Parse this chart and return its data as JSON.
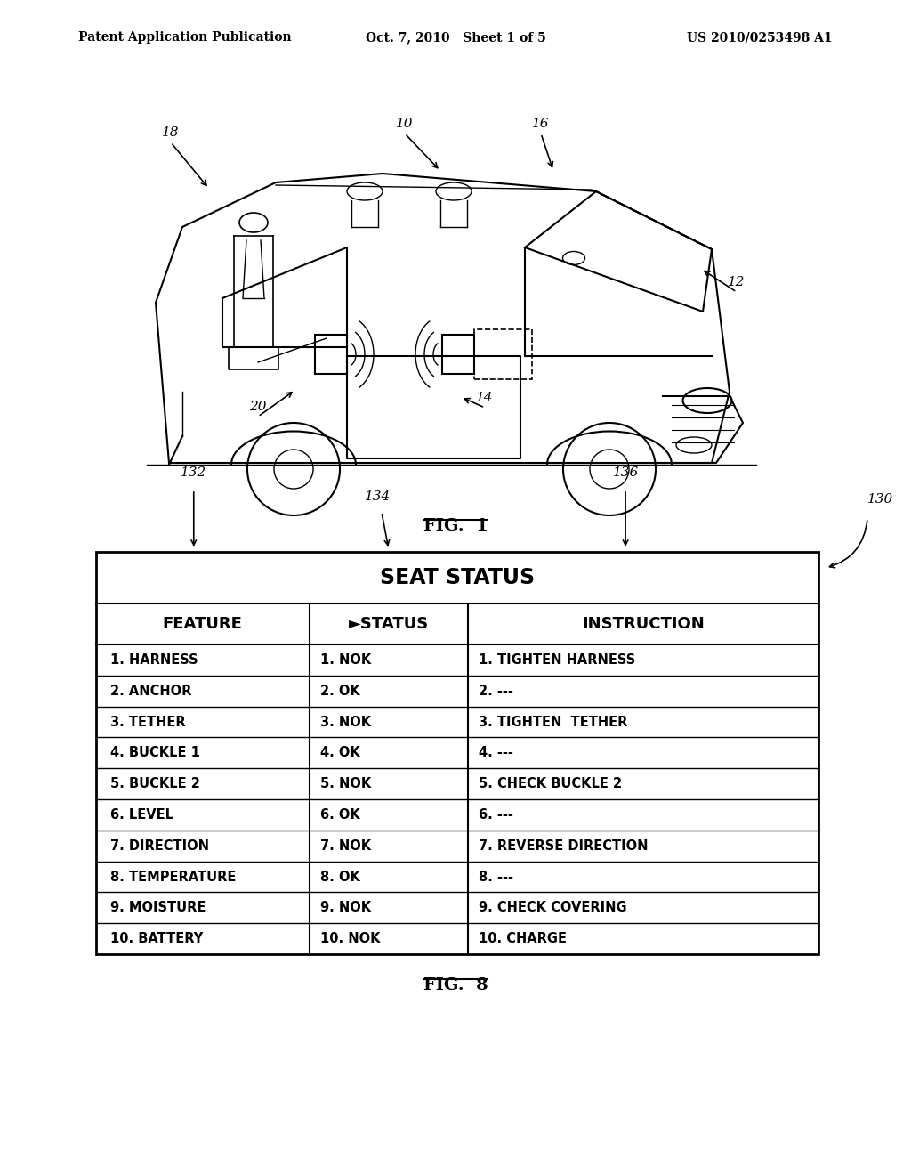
{
  "bg_color": "#ffffff",
  "header_left": "Patent Application Publication",
  "header_center": "Oct. 7, 2010   Sheet 1 of 5",
  "header_right": "US 2010/0253498 A1",
  "fig1_label": "FIG.  1",
  "fig8_label": "FIG.  8",
  "table_title": "SEAT STATUS",
  "col_headers": [
    "FEATURE",
    "►STATUS",
    "INSTRUCTION"
  ],
  "col_ref_labels": [
    "132",
    "134",
    "136"
  ],
  "table_ref_label": "130",
  "features": [
    "1. HARNESS",
    "2. ANCHOR",
    "3. TETHER",
    "4. BUCKLE 1",
    "5. BUCKLE 2",
    "6. LEVEL",
    "7. DIRECTION",
    "8. TEMPERATURE",
    "9. MOISTURE",
    "10. BATTERY"
  ],
  "statuses": [
    "1. NOK",
    "2. OK",
    "3. NOK",
    "4. OK",
    "5. NOK",
    "6. OK",
    "7. NOK",
    "8. OK",
    "9. NOK",
    "10. NOK"
  ],
  "instructions": [
    "1. TIGHTEN HARNESS",
    "2. ---",
    "3. TIGHTEN  TETHER",
    "4. ---",
    "5. CHECK BUCKLE 2",
    "6. ---",
    "7. REVERSE DIRECTION",
    "8. ---",
    "9. CHECK COVERING",
    "10. CHARGE"
  ]
}
